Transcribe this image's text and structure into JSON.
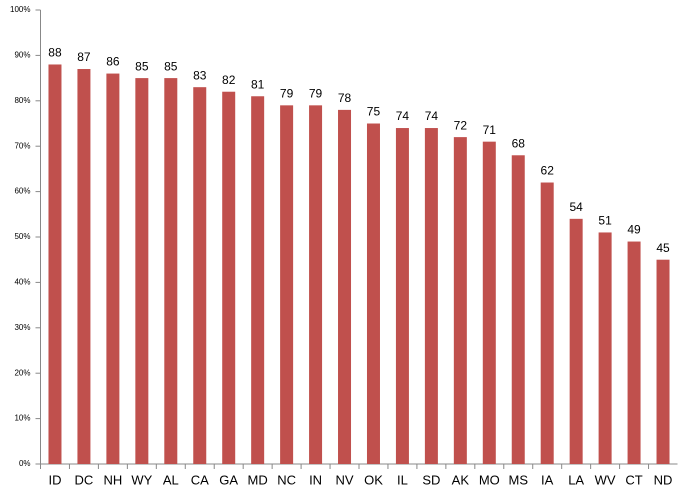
{
  "chart_data": {
    "type": "bar",
    "categories": [
      "ID",
      "DC",
      "NH",
      "WY",
      "AL",
      "CA",
      "GA",
      "MD",
      "NC",
      "IN",
      "NV",
      "OK",
      "IL",
      "SD",
      "AK",
      "MO",
      "MS",
      "IA",
      "LA",
      "WV",
      "CT",
      "ND"
    ],
    "values": [
      88,
      87,
      86,
      85,
      85,
      83,
      82,
      81,
      79,
      79,
      78,
      75,
      74,
      74,
      72,
      71,
      68,
      62,
      54,
      51,
      49,
      45
    ],
    "color": "#c0504d",
    "ylim": [
      0,
      100
    ],
    "yticks": [
      {
        "value": 0,
        "label": "0%"
      },
      {
        "value": 10,
        "label": "10%"
      },
      {
        "value": 20,
        "label": "20%"
      },
      {
        "value": 30,
        "label": "30%"
      },
      {
        "value": 40,
        "label": "40%"
      },
      {
        "value": 50,
        "label": "50%"
      },
      {
        "value": 60,
        "label": "60%"
      },
      {
        "value": 70,
        "label": "70%"
      },
      {
        "value": 80,
        "label": "80%"
      },
      {
        "value": 90,
        "label": "90%"
      },
      {
        "value": 100,
        "label": "100%"
      }
    ],
    "grid": false
  }
}
